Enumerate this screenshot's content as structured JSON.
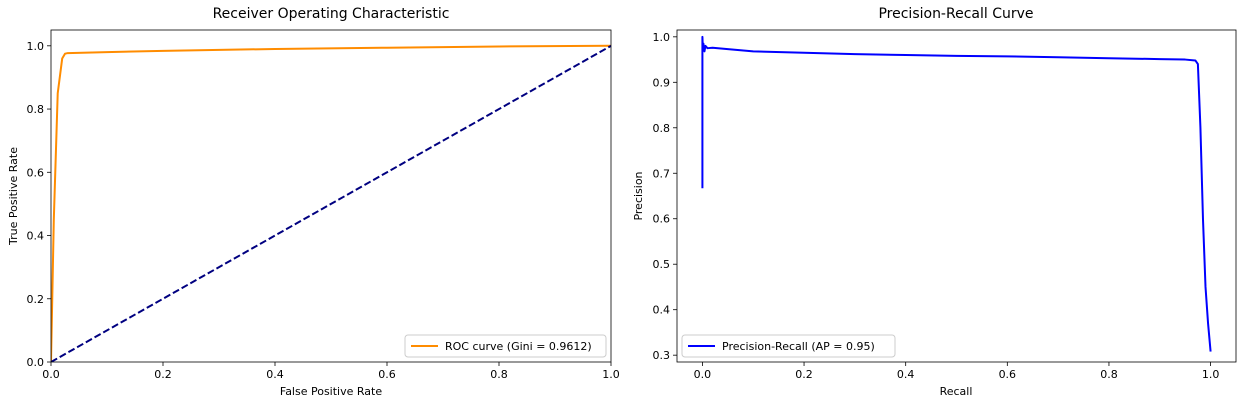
{
  "chart_data": [
    {
      "type": "line",
      "title": "Receiver Operating Characteristic",
      "xlabel": "False Positive Rate",
      "ylabel": "True Positive Rate",
      "xlim": [
        0.0,
        1.0
      ],
      "ylim": [
        0.0,
        1.05
      ],
      "xticks": [
        "0.0",
        "0.2",
        "0.4",
        "0.6",
        "0.8",
        "1.0"
      ],
      "yticks": [
        "0.0",
        "0.2",
        "0.4",
        "0.6",
        "0.8",
        "1.0"
      ],
      "grid": false,
      "legend_position": "lower-right",
      "series": [
        {
          "name": "ROC curve (Gini = 0.9612)",
          "color": "#ff8c00",
          "style": "solid",
          "x": [
            0.0,
            0.005,
            0.012,
            0.02,
            0.025,
            0.03,
            0.1,
            0.2,
            0.4,
            0.6,
            0.8,
            1.0
          ],
          "y": [
            0.0,
            0.45,
            0.85,
            0.96,
            0.975,
            0.977,
            0.98,
            0.984,
            0.99,
            0.994,
            0.998,
            1.0
          ]
        },
        {
          "name": "",
          "color": "#000080",
          "style": "dashed",
          "x": [
            0.0,
            1.0
          ],
          "y": [
            0.0,
            1.0
          ]
        }
      ]
    },
    {
      "type": "line",
      "title": "Precision-Recall Curve",
      "xlabel": "Recall",
      "ylabel": "Precision",
      "xlim": [
        -0.05,
        1.05
      ],
      "ylim": [
        0.285,
        1.015
      ],
      "xticks": [
        "0.0",
        "0.2",
        "0.4",
        "0.6",
        "0.8",
        "1.0"
      ],
      "yticks": [
        "0.3",
        "0.4",
        "0.5",
        "0.6",
        "0.7",
        "0.8",
        "0.9",
        "1.0"
      ],
      "grid": false,
      "legend_position": "lower-left",
      "series": [
        {
          "name": "Precision-Recall (AP = 0.95)",
          "color": "#0000ff",
          "style": "solid",
          "x": [
            0.0,
            0.0,
            0.0,
            0.001,
            0.002,
            0.004,
            0.006,
            0.01,
            0.02,
            0.05,
            0.1,
            0.2,
            0.3,
            0.4,
            0.5,
            0.6,
            0.7,
            0.8,
            0.9,
            0.95,
            0.97,
            0.975,
            0.98,
            0.985,
            0.99,
            0.995,
            1.0
          ],
          "y": [
            0.667,
            0.95,
            1.0,
            0.97,
            0.985,
            0.968,
            0.98,
            0.975,
            0.976,
            0.973,
            0.968,
            0.965,
            0.962,
            0.96,
            0.958,
            0.957,
            0.955,
            0.953,
            0.951,
            0.95,
            0.948,
            0.94,
            0.8,
            0.6,
            0.45,
            0.37,
            0.308
          ]
        }
      ]
    }
  ]
}
